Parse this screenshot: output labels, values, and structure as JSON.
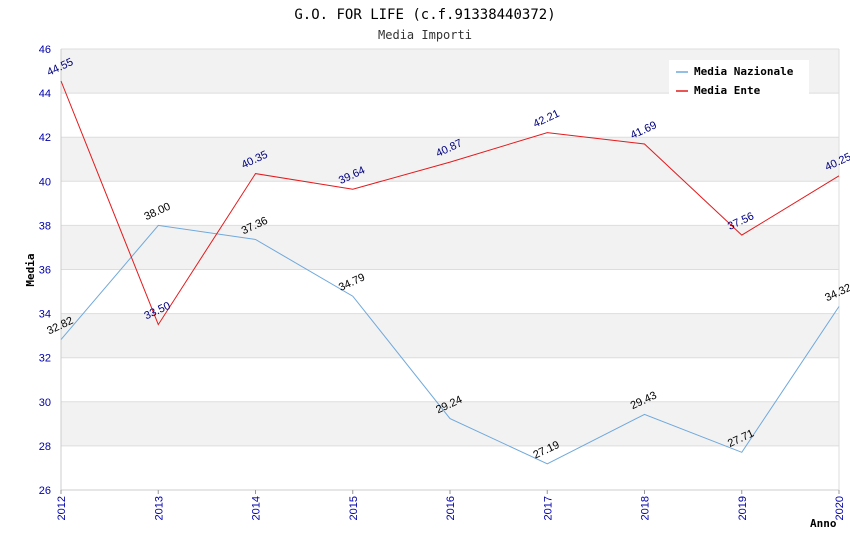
{
  "chart_data": {
    "type": "line",
    "title": "G.O. FOR LIFE (c.f.91338440372)",
    "subtitle": "Media Importi",
    "xlabel": "Anno",
    "ylabel": "Media",
    "ylim": [
      26,
      46
    ],
    "yticks": [
      "26",
      "28",
      "30",
      "32",
      "34",
      "36",
      "38",
      "40",
      "42",
      "44",
      "46"
    ],
    "x": [
      "2012",
      "2013",
      "2014",
      "2015",
      "2016",
      "2017",
      "2018",
      "2019",
      "2020"
    ],
    "grid": true,
    "legend_position": "top-right",
    "series": [
      {
        "name": "Media Nazionale",
        "color": "#6fa8dc",
        "values": [
          32.82,
          38.0,
          37.36,
          34.79,
          29.24,
          27.19,
          29.43,
          27.71,
          34.32
        ],
        "labels": [
          "32.82",
          "38.00",
          "37.36",
          "34.79",
          "29.24",
          "27.19",
          "29.43",
          "27.71",
          "34.32"
        ]
      },
      {
        "name": "Media Ente",
        "color": "#e31a1c",
        "values": [
          44.55,
          33.5,
          40.35,
          39.64,
          40.87,
          42.21,
          41.69,
          37.56,
          40.25
        ],
        "labels": [
          "44.55",
          "33.50",
          "40.35",
          "39.64",
          "40.87",
          "42.21",
          "41.69",
          "37.56",
          "40.25"
        ]
      }
    ]
  }
}
